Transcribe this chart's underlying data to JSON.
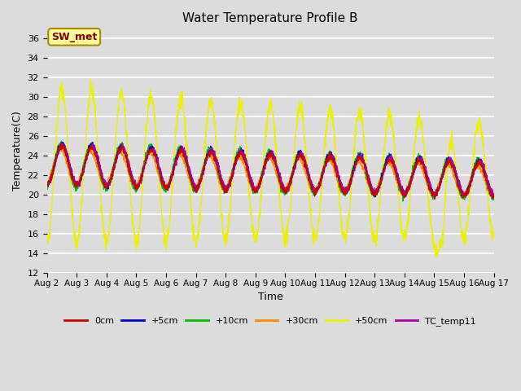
{
  "title": "Water Temperature Profile B",
  "xlabel": "Time",
  "ylabel": "Temperature(C)",
  "ylim": [
    12,
    37
  ],
  "yticks": [
    12,
    14,
    16,
    18,
    20,
    22,
    24,
    26,
    28,
    30,
    32,
    34,
    36
  ],
  "background_color": "#dcdcdc",
  "plot_bg_color": "#dcdcdc",
  "grid_color": "#ffffff",
  "series_colors": {
    "0cm": "#cc0000",
    "+5cm": "#0000cc",
    "+10cm": "#00bb00",
    "+30cm": "#ff8800",
    "+50cm": "#eeee00",
    "TC_temp11": "#aa00aa"
  },
  "annotation_text": "SW_met",
  "annotation_color": "#880000",
  "annotation_bg": "#ffff99",
  "n_days": 15,
  "samples_per_day": 144,
  "title_fontsize": 11,
  "axis_fontsize": 9,
  "tick_fontsize": 8
}
